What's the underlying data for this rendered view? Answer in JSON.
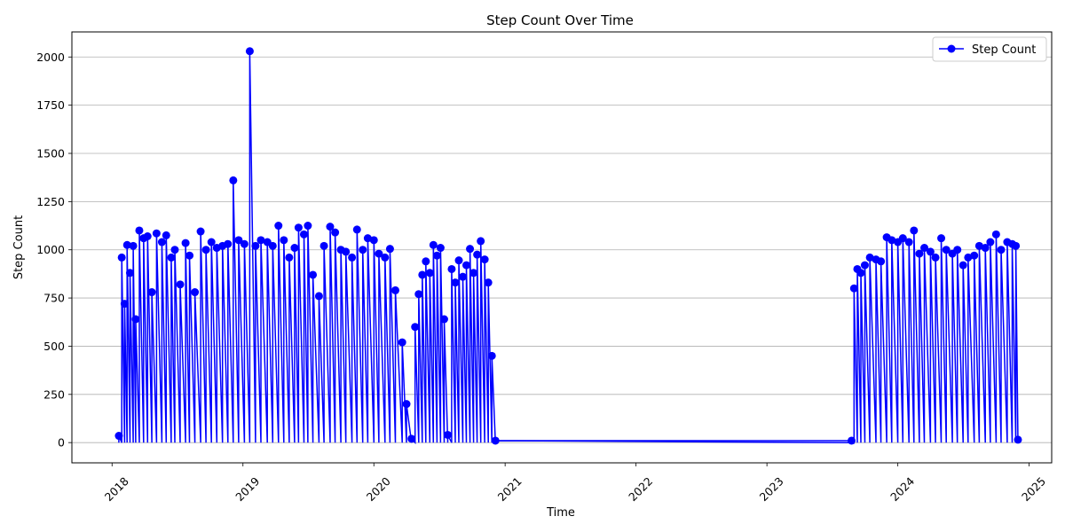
{
  "chart_data": {
    "type": "line",
    "title": "Step Count Over Time",
    "xlabel": "Time",
    "ylabel": "Step Count",
    "xlim": [
      "2017-09-11",
      "2025-03-05"
    ],
    "ylim": [
      -105,
      2130
    ],
    "x_ticks": [
      "2018",
      "2019",
      "2020",
      "2021",
      "2022",
      "2023",
      "2024",
      "2025"
    ],
    "y_ticks": [
      0,
      250,
      500,
      750,
      1000,
      1250,
      1500,
      1750,
      2000
    ],
    "grid": "horizontal",
    "legend_position": "top-right",
    "line_color": "#0000ff",
    "series": [
      {
        "name": "Step Count",
        "color": "#0000ff",
        "marker": "circle",
        "points": [
          [
            "2018-01-20",
            35
          ],
          [
            "2018-01-28",
            960
          ],
          [
            "2018-02-05",
            720
          ],
          [
            "2018-02-12",
            1025
          ],
          [
            "2018-02-20",
            880
          ],
          [
            "2018-03-01",
            1020
          ],
          [
            "2018-03-08",
            640
          ],
          [
            "2018-03-18",
            1100
          ],
          [
            "2018-03-30",
            1060
          ],
          [
            "2018-04-10",
            1070
          ],
          [
            "2018-04-22",
            780
          ],
          [
            "2018-05-05",
            1085
          ],
          [
            "2018-05-20",
            1040
          ],
          [
            "2018-06-01",
            1075
          ],
          [
            "2018-06-15",
            960
          ],
          [
            "2018-06-25",
            1000
          ],
          [
            "2018-07-10",
            820
          ],
          [
            "2018-07-25",
            1035
          ],
          [
            "2018-08-05",
            970
          ],
          [
            "2018-08-20",
            780
          ],
          [
            "2018-09-05",
            1095
          ],
          [
            "2018-09-20",
            1000
          ],
          [
            "2018-10-05",
            1040
          ],
          [
            "2018-10-20",
            1010
          ],
          [
            "2018-11-05",
            1020
          ],
          [
            "2018-11-20",
            1030
          ],
          [
            "2018-12-05",
            1360
          ],
          [
            "2018-12-20",
            1050
          ],
          [
            "2019-01-05",
            1030
          ],
          [
            "2019-01-20",
            2030
          ],
          [
            "2019-02-05",
            1020
          ],
          [
            "2019-02-20",
            1050
          ],
          [
            "2019-03-10",
            1040
          ],
          [
            "2019-03-25",
            1020
          ],
          [
            "2019-04-10",
            1125
          ],
          [
            "2019-04-25",
            1050
          ],
          [
            "2019-05-10",
            960
          ],
          [
            "2019-05-25",
            1010
          ],
          [
            "2019-06-05",
            1115
          ],
          [
            "2019-06-20",
            1080
          ],
          [
            "2019-07-01",
            1125
          ],
          [
            "2019-07-15",
            870
          ],
          [
            "2019-08-01",
            760
          ],
          [
            "2019-08-15",
            1020
          ],
          [
            "2019-09-01",
            1120
          ],
          [
            "2019-09-15",
            1090
          ],
          [
            "2019-10-01",
            1000
          ],
          [
            "2019-10-15",
            990
          ],
          [
            "2019-11-01",
            960
          ],
          [
            "2019-11-15",
            1105
          ],
          [
            "2019-12-01",
            1000
          ],
          [
            "2019-12-15",
            1060
          ],
          [
            "2020-01-01",
            1050
          ],
          [
            "2020-01-15",
            980
          ],
          [
            "2020-02-01",
            960
          ],
          [
            "2020-02-15",
            1005
          ],
          [
            "2020-03-01",
            790
          ],
          [
            "2020-03-20",
            520
          ],
          [
            "2020-04-01",
            200
          ],
          [
            "2020-04-15",
            20
          ],
          [
            "2020-04-25",
            600
          ],
          [
            "2020-05-05",
            770
          ],
          [
            "2020-05-15",
            870
          ],
          [
            "2020-05-25",
            940
          ],
          [
            "2020-06-05",
            880
          ],
          [
            "2020-06-15",
            1025
          ],
          [
            "2020-06-25",
            970
          ],
          [
            "2020-07-05",
            1010
          ],
          [
            "2020-07-15",
            640
          ],
          [
            "2020-07-25",
            40
          ],
          [
            "2020-08-05",
            900
          ],
          [
            "2020-08-15",
            830
          ],
          [
            "2020-08-25",
            945
          ],
          [
            "2020-09-05",
            860
          ],
          [
            "2020-09-15",
            920
          ],
          [
            "2020-09-25",
            1005
          ],
          [
            "2020-10-05",
            880
          ],
          [
            "2020-10-15",
            975
          ],
          [
            "2020-10-25",
            1045
          ],
          [
            "2020-11-05",
            950
          ],
          [
            "2020-11-15",
            830
          ],
          [
            "2020-11-25",
            450
          ],
          [
            "2020-12-05",
            10
          ],
          [
            "2023-08-25",
            10
          ],
          [
            "2023-09-01",
            800
          ],
          [
            "2023-09-10",
            900
          ],
          [
            "2023-09-20",
            880
          ],
          [
            "2023-10-01",
            920
          ],
          [
            "2023-10-15",
            960
          ],
          [
            "2023-11-01",
            950
          ],
          [
            "2023-11-15",
            940
          ],
          [
            "2023-12-01",
            1065
          ],
          [
            "2023-12-15",
            1050
          ],
          [
            "2024-01-01",
            1040
          ],
          [
            "2024-01-15",
            1060
          ],
          [
            "2024-02-01",
            1040
          ],
          [
            "2024-02-15",
            1100
          ],
          [
            "2024-03-01",
            980
          ],
          [
            "2024-03-15",
            1010
          ],
          [
            "2024-04-01",
            990
          ],
          [
            "2024-04-15",
            960
          ],
          [
            "2024-05-01",
            1060
          ],
          [
            "2024-05-15",
            1000
          ],
          [
            "2024-06-01",
            980
          ],
          [
            "2024-06-15",
            1000
          ],
          [
            "2024-07-01",
            920
          ],
          [
            "2024-07-15",
            960
          ],
          [
            "2024-08-01",
            970
          ],
          [
            "2024-08-15",
            1020
          ],
          [
            "2024-09-01",
            1010
          ],
          [
            "2024-09-15",
            1040
          ],
          [
            "2024-10-01",
            1080
          ],
          [
            "2024-10-15",
            1000
          ],
          [
            "2024-11-01",
            1040
          ],
          [
            "2024-11-15",
            1030
          ],
          [
            "2024-11-25",
            1020
          ],
          [
            "2024-12-01",
            15
          ]
        ]
      }
    ]
  }
}
